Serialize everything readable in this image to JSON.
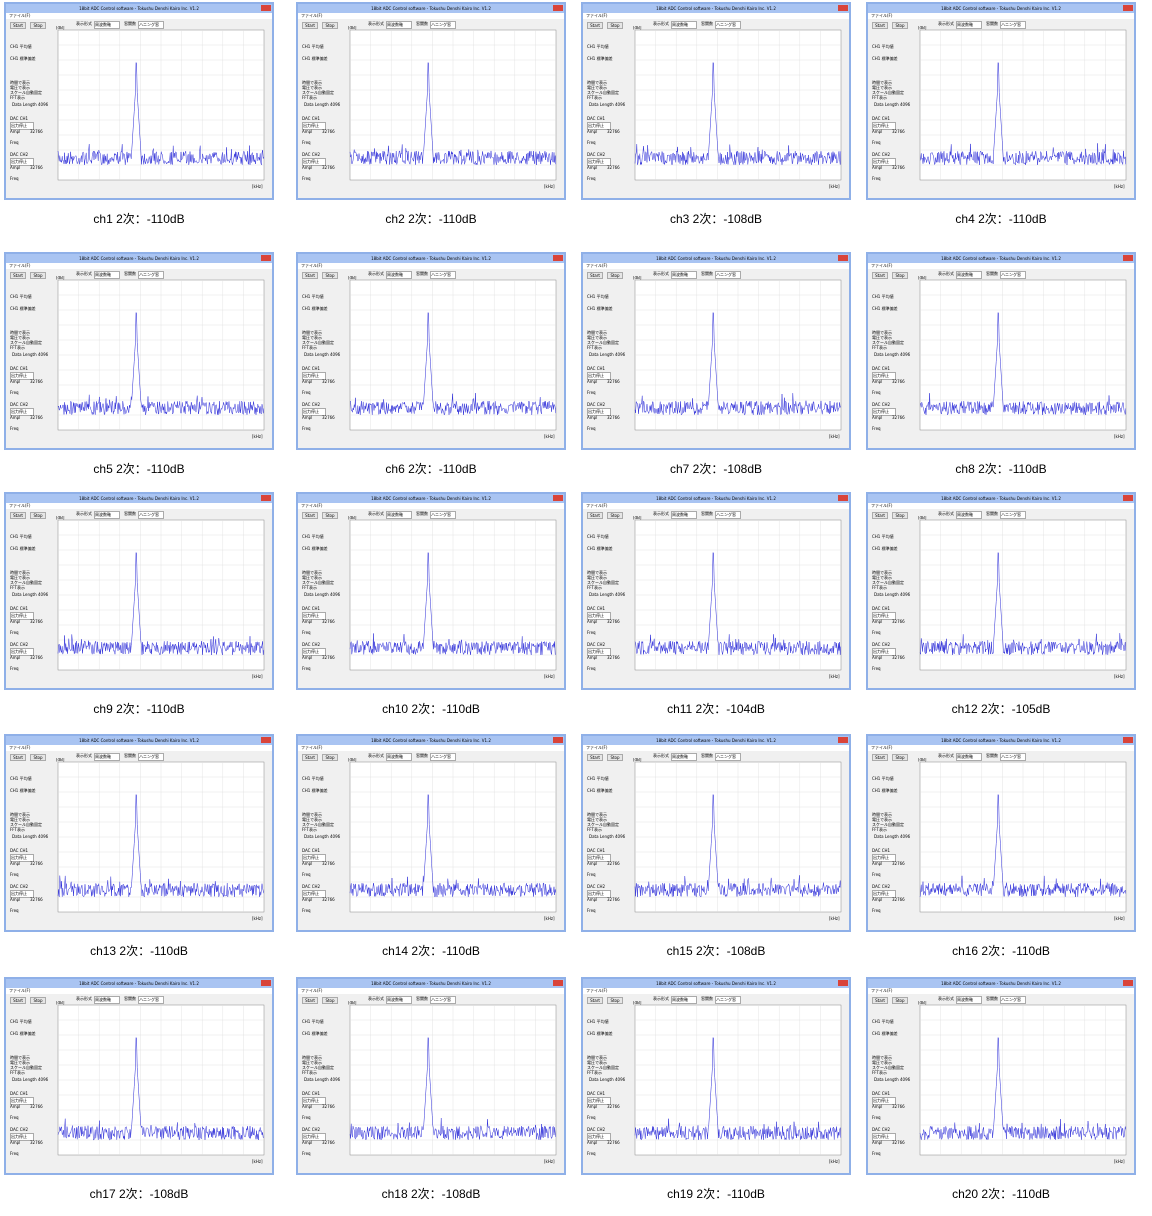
{
  "window": {
    "title": "18bit ADC Control software - Tokushu Denshi Kairo Inc. V1.2",
    "menu": "ファイル(F)",
    "start": "Start",
    "stop": "Stop",
    "display_label": "表示形式",
    "display_value": "周波数軸",
    "window_label": "窓関数",
    "window_value": "ハニング窓",
    "mean_label": "CH1 平均値",
    "std_label": "CH1 標準偏差",
    "options": [
      "時間で表示",
      "電圧で表示",
      "スケール自動固定",
      "FFT表示"
    ],
    "data_length_label": "Data Length",
    "data_length_value": "4096",
    "dac_ch1": "DAC CH1",
    "dac_ch2": "DAC CH2",
    "dac_mode": "出力停止",
    "ampl": "Ampl",
    "ampl_value": "32766",
    "freq": "Freq",
    "y_unit": "[dB]",
    "x_unit": "[kHz]"
  },
  "captions": [
    "ch1 2次：-110dB",
    "ch2 2次：-110dB",
    "ch3 2次：-108dB",
    "ch4 2次：-110dB",
    "ch5 2次：-110dB",
    "ch6 2次：-110dB",
    "ch7 2次：-108dB",
    "ch8 2次：-110dB",
    "ch9 2次：-110dB",
    "ch10 2次：-110dB",
    "ch11 2次：-104dB",
    "ch12 2次：-105dB",
    "ch13 2次：-110dB",
    "ch14 2次：-110dB",
    "ch15 2次：-108dB",
    "ch16 2次：-110dB",
    "ch17 2次：-108dB",
    "ch18 2次：-108dB",
    "ch19 2次：-110dB",
    "ch20 2次：-110dB"
  ]
}
